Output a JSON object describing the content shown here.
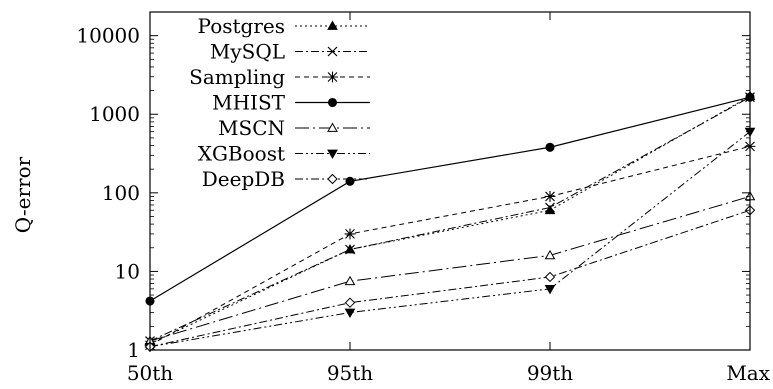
{
  "chart_data": {
    "type": "line",
    "title": "",
    "xlabel": "",
    "ylabel": "Q-error",
    "y_scale": "log",
    "ylim": [
      1,
      20000
    ],
    "categories": [
      "50th",
      "95th",
      "99th",
      "Max"
    ],
    "y_ticks": [
      1,
      10,
      100,
      1000,
      10000
    ],
    "y_tick_labels": [
      "1",
      "10",
      "100",
      "1000",
      "10000"
    ],
    "grid": false,
    "legend_position": "top-left",
    "series": [
      {
        "name": "Postgres",
        "values": [
          1.2,
          19,
          60,
          1700
        ],
        "line_style": "dotted",
        "marker": "triangle-up-filled"
      },
      {
        "name": "MySQL",
        "values": [
          1.3,
          19,
          65,
          1650
        ],
        "line_style": "dash-dot",
        "marker": "x"
      },
      {
        "name": "Sampling",
        "values": [
          1.15,
          30,
          90,
          390
        ],
        "line_style": "dashed",
        "marker": "star"
      },
      {
        "name": "MHIST",
        "values": [
          4.2,
          140,
          380,
          1650
        ],
        "line_style": "solid",
        "marker": "circle-filled"
      },
      {
        "name": "MSCN",
        "values": [
          1.3,
          7.5,
          16,
          90
        ],
        "line_style": "long-dash-dot",
        "marker": "triangle-up-open"
      },
      {
        "name": "XGBoost",
        "values": [
          1.1,
          3,
          6,
          600
        ],
        "line_style": "dash-dot-dot",
        "marker": "triangle-down-filled"
      },
      {
        "name": "DeepDB",
        "values": [
          1.1,
          4,
          8.5,
          60
        ],
        "line_style": "dash-dot",
        "marker": "diamond-open"
      }
    ]
  }
}
